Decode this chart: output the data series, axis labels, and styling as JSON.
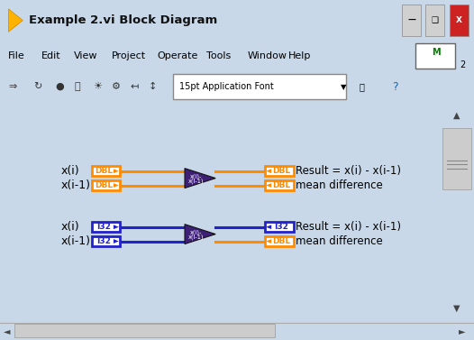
{
  "title": "Example 2.vi Block Diagram",
  "bg_color": "#c8d8e8",
  "canvas_color": "#f0f4f8",
  "titlebar_color": "#b8cfe8",
  "menubar_items": [
    "File",
    "Edit",
    "View",
    "Project",
    "Operate",
    "Tools",
    "Window",
    "Help"
  ],
  "toolbar_font_text": "15pt Application Font",
  "orange_color": "#FF8C00",
  "blue_color": "#2222CC",
  "purple_node": "#3d2075",
  "dbl_label_color": "#FF8C00",
  "i32_label_color": "#2222CC",
  "result_text1": "Result = x(i) - x(i-1)",
  "result_text2": "mean difference",
  "node_text": "x(i)-\nx(i-1)",
  "wire1_color": "#FF8C00",
  "wire2_top_color": "#2222CC",
  "wire2_bot_color": "#FF8C00"
}
